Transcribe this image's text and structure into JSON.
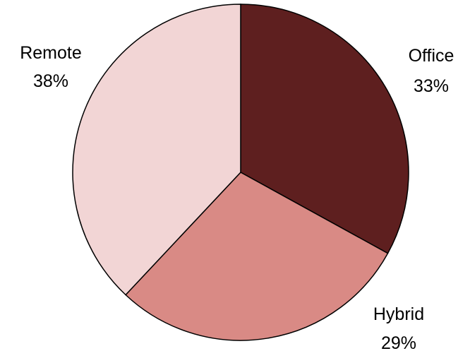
{
  "chart_data": {
    "type": "pie",
    "title": "",
    "start": "12 o'clock",
    "direction": "clockwise",
    "slices": [
      {
        "label": "Office",
        "value": 33,
        "value_label": "33%",
        "color": "#5E1F1F"
      },
      {
        "label": "Hybrid",
        "value": 29,
        "value_label": "29%",
        "color": "#D98A85"
      },
      {
        "label": "Remote",
        "value": 38,
        "value_label": "38%",
        "color": "#F2D5D5"
      }
    ],
    "legend": "none"
  }
}
